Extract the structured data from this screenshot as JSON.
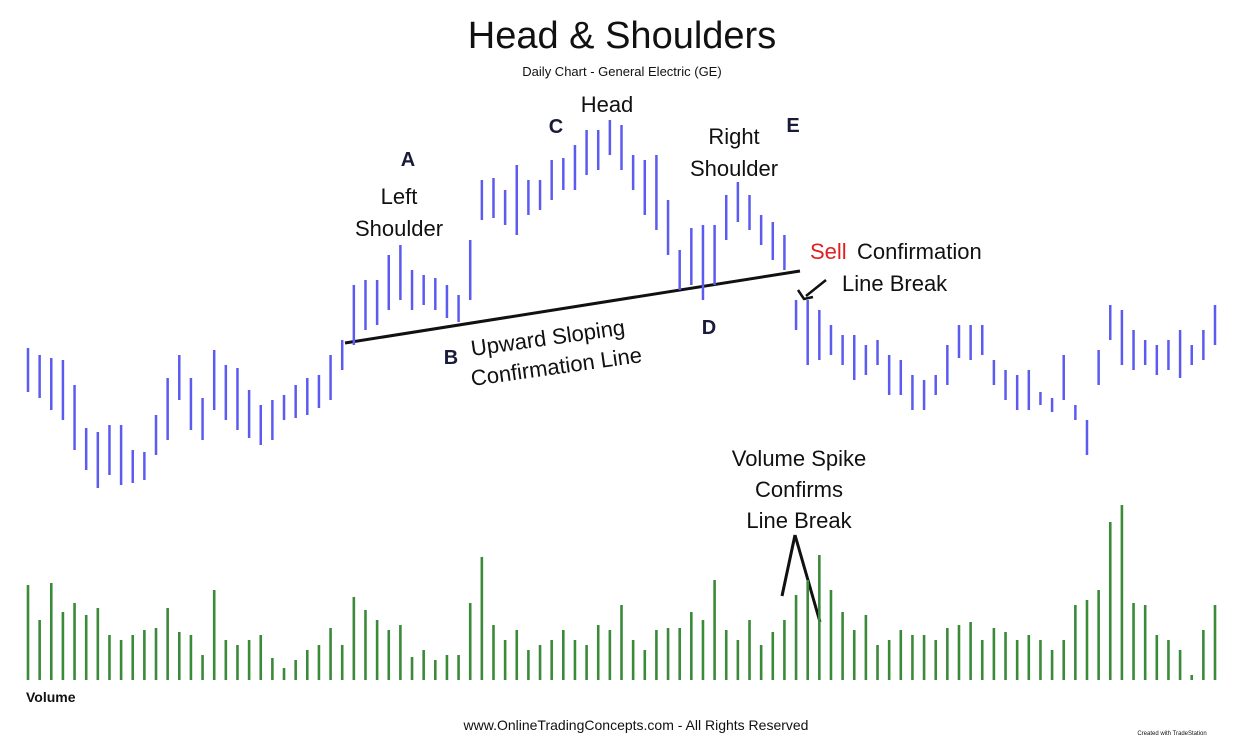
{
  "chart_data": [
    {
      "type": "range_bar",
      "title": "Head & Shoulders",
      "subtitle": "Daily Chart - General Electric (GE)",
      "color": "#5b5bef",
      "ylim": [
        0,
        380
      ],
      "highs": [
        142,
        135,
        132,
        130,
        105,
        62,
        58,
        65,
        65,
        40,
        38,
        75,
        112,
        135,
        112,
        92,
        140,
        125,
        122,
        100,
        85,
        90,
        95,
        105,
        112,
        115,
        135,
        150,
        205,
        210,
        210,
        235,
        245,
        220,
        215,
        212,
        205,
        195,
        250,
        310,
        312,
        300,
        325,
        310,
        310,
        330,
        332,
        345,
        360,
        360,
        370,
        365,
        335,
        330,
        335,
        290,
        240,
        262,
        265,
        265,
        295,
        308,
        295,
        275,
        268,
        255,
        190,
        190,
        180,
        165,
        155,
        155,
        145,
        150,
        135,
        130,
        115,
        110,
        115,
        145,
        165,
        165,
        165,
        130,
        120,
        115,
        120,
        98,
        92,
        135,
        85,
        70,
        140,
        185,
        180,
        160,
        150,
        145,
        150,
        160,
        145,
        160,
        185
      ],
      "lows": [
        98,
        92,
        80,
        70,
        40,
        20,
        2,
        15,
        5,
        7,
        10,
        35,
        50,
        90,
        60,
        50,
        80,
        70,
        60,
        52,
        45,
        50,
        70,
        72,
        75,
        82,
        90,
        120,
        145,
        160,
        165,
        180,
        190,
        180,
        185,
        180,
        172,
        168,
        190,
        270,
        272,
        265,
        255,
        275,
        280,
        290,
        300,
        300,
        315,
        320,
        335,
        320,
        300,
        275,
        260,
        235,
        200,
        205,
        190,
        205,
        250,
        268,
        260,
        245,
        230,
        220,
        160,
        125,
        130,
        135,
        125,
        110,
        115,
        125,
        95,
        95,
        80,
        80,
        95,
        105,
        132,
        130,
        135,
        105,
        90,
        80,
        80,
        85,
        78,
        90,
        70,
        35,
        105,
        150,
        125,
        120,
        125,
        115,
        120,
        112,
        125,
        130,
        145
      ],
      "annotations": {
        "a": "A",
        "b": "B",
        "c": "C",
        "d": "D",
        "e": "E",
        "left_shoulder": [
          "Left",
          "Shoulder"
        ],
        "head": "Head",
        "right_shoulder": [
          "Right",
          "Shoulder"
        ],
        "sell": "Sell",
        "confirmation": "Confirmation",
        "line_break": "Line Break",
        "neckline": [
          "Upward Sloping",
          "Confirmation Line"
        ],
        "volume_spike": [
          "Volume Spike",
          "Confirms",
          "Line Break"
        ]
      },
      "footer": "www.OnlineTradingConcepts.com - All Rights Reserved",
      "credit": "Created with TradeStation"
    },
    {
      "type": "bar",
      "label": "Volume",
      "color": "#3a8a3a",
      "ylim": [
        0,
        180
      ],
      "values": [
        95,
        60,
        97,
        68,
        77,
        65,
        72,
        45,
        40,
        45,
        50,
        52,
        72,
        48,
        45,
        25,
        90,
        40,
        35,
        40,
        45,
        22,
        12,
        20,
        30,
        35,
        52,
        35,
        83,
        70,
        60,
        50,
        55,
        23,
        30,
        20,
        25,
        25,
        77,
        123,
        55,
        40,
        50,
        30,
        35,
        40,
        50,
        40,
        35,
        55,
        50,
        75,
        40,
        30,
        50,
        52,
        52,
        68,
        60,
        100,
        50,
        40,
        60,
        35,
        48,
        60,
        85,
        100,
        125,
        90,
        68,
        50,
        65,
        35,
        40,
        50,
        45,
        45,
        40,
        52,
        55,
        58,
        40,
        52,
        48,
        40,
        45,
        40,
        30,
        40,
        75,
        80,
        90,
        158,
        175,
        77,
        75,
        45,
        40,
        30,
        5,
        50,
        75
      ]
    }
  ]
}
